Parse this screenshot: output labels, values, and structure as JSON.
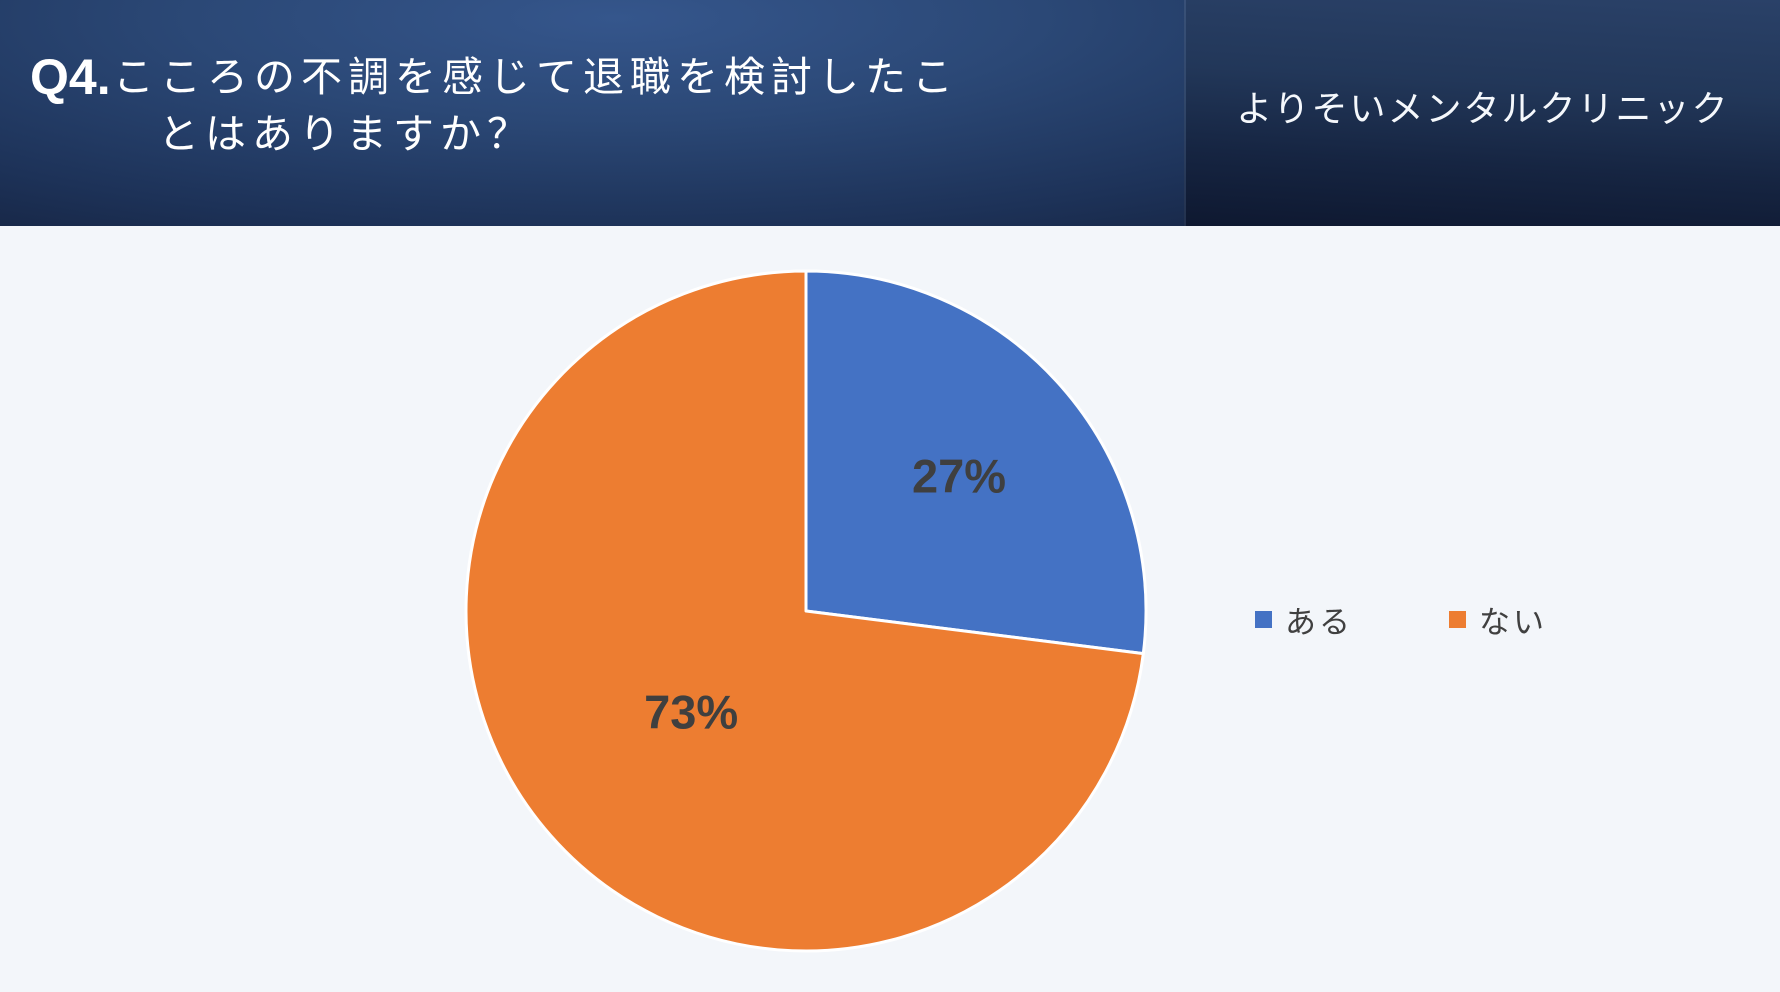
{
  "header": {
    "question_number": "Q4.",
    "title_line1": "こころの不調を感じて退職を検討したこ",
    "title_line2": "とはありますか？",
    "brand": "よりそいメンタルクリニック"
  },
  "chart_data": {
    "type": "pie",
    "title": "Q4. こころの不調を感じて退職を検討したことはありますか？",
    "categories": [
      "ある",
      "ない"
    ],
    "values": [
      27,
      73
    ],
    "data_labels": [
      "27%",
      "73%"
    ],
    "unit": "%",
    "colors": [
      "#4472C4",
      "#ED7D31"
    ],
    "slice_border_color": "#FFFFFF",
    "label_color": "#3F3F3F",
    "start_angle_deg": 0,
    "direction": "clockwise",
    "legend_position": "right",
    "legend_items": [
      {
        "label": "ある",
        "color": "#4472C4"
      },
      {
        "label": "ない",
        "color": "#ED7D31"
      }
    ]
  },
  "style_colors": {
    "chart_background": "#F3F6FA",
    "header_left_top": "#35568C",
    "header_dark": "#101A31",
    "text_on_dark": "#FFFFFF",
    "label_gray": "#3F3F3F"
  }
}
